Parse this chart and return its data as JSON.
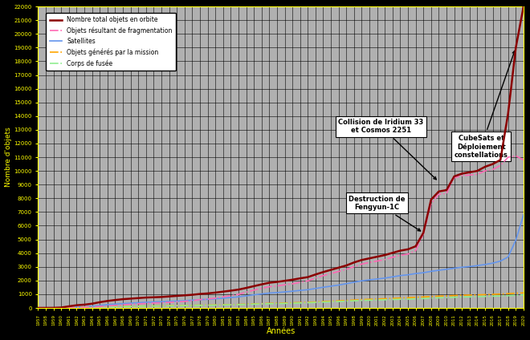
{
  "years": [
    1957,
    1958,
    1959,
    1960,
    1961,
    1962,
    1963,
    1964,
    1965,
    1966,
    1967,
    1968,
    1969,
    1970,
    1971,
    1972,
    1973,
    1974,
    1975,
    1976,
    1977,
    1978,
    1979,
    1980,
    1981,
    1982,
    1983,
    1984,
    1985,
    1986,
    1987,
    1988,
    1989,
    1990,
    1991,
    1992,
    1993,
    1994,
    1995,
    1996,
    1997,
    1998,
    1999,
    2000,
    2001,
    2002,
    2003,
    2004,
    2005,
    2006,
    2007,
    2008,
    2009,
    2010,
    2011,
    2012,
    2013,
    2014,
    2015,
    2016,
    2017,
    2018,
    2019,
    2020
  ],
  "total": [
    2,
    4,
    8,
    30,
    120,
    200,
    240,
    310,
    420,
    510,
    580,
    640,
    680,
    720,
    760,
    780,
    800,
    840,
    880,
    920,
    960,
    1020,
    1060,
    1120,
    1190,
    1260,
    1340,
    1460,
    1590,
    1720,
    1840,
    1900,
    1980,
    2060,
    2160,
    2250,
    2440,
    2620,
    2780,
    2940,
    3100,
    3320,
    3500,
    3620,
    3740,
    3860,
    4020,
    4180,
    4280,
    4500,
    5480,
    7900,
    8500,
    8600,
    9600,
    9800,
    9900,
    10000,
    10300,
    10500,
    10800,
    14200,
    19000,
    22000
  ],
  "fragmentation": [
    0,
    0,
    0,
    0,
    0,
    30,
    40,
    60,
    100,
    140,
    185,
    230,
    270,
    300,
    330,
    360,
    380,
    410,
    445,
    480,
    530,
    610,
    650,
    720,
    810,
    900,
    990,
    1150,
    1300,
    1430,
    1550,
    1600,
    1690,
    1760,
    1870,
    1970,
    2180,
    2360,
    2510,
    2660,
    2820,
    3010,
    3200,
    3320,
    3420,
    3530,
    3700,
    3840,
    3930,
    4180,
    5400,
    7600,
    8300,
    8350,
    9500,
    9650,
    9700,
    9750,
    10000,
    10100,
    10400,
    11000,
    11100,
    10800
  ],
  "satellites": [
    1,
    2,
    4,
    12,
    35,
    60,
    80,
    120,
    180,
    240,
    280,
    315,
    350,
    380,
    415,
    435,
    455,
    480,
    500,
    530,
    565,
    600,
    630,
    668,
    715,
    760,
    810,
    880,
    960,
    1020,
    1085,
    1120,
    1170,
    1220,
    1280,
    1330,
    1420,
    1510,
    1590,
    1670,
    1770,
    1880,
    1980,
    2050,
    2110,
    2180,
    2270,
    2360,
    2420,
    2510,
    2570,
    2670,
    2750,
    2820,
    2900,
    2970,
    3020,
    3090,
    3170,
    3270,
    3420,
    3720,
    4950,
    6800
  ],
  "mission": [
    0,
    0,
    0,
    5,
    18,
    35,
    50,
    65,
    82,
    100,
    108,
    118,
    126,
    134,
    142,
    150,
    156,
    165,
    174,
    184,
    192,
    204,
    210,
    220,
    234,
    246,
    258,
    278,
    298,
    316,
    334,
    346,
    358,
    374,
    394,
    412,
    438,
    466,
    492,
    518,
    548,
    580,
    610,
    632,
    652,
    674,
    698,
    724,
    744,
    776,
    800,
    834,
    860,
    882,
    904,
    926,
    938,
    955,
    972,
    992,
    1014,
    1042,
    1074,
    1100
  ],
  "rocket_body": [
    0,
    0,
    0,
    5,
    14,
    25,
    36,
    50,
    68,
    84,
    94,
    104,
    112,
    120,
    128,
    136,
    142,
    150,
    158,
    168,
    176,
    186,
    194,
    204,
    216,
    228,
    240,
    258,
    276,
    292,
    308,
    318,
    328,
    342,
    360,
    376,
    402,
    428,
    448,
    470,
    496,
    524,
    548,
    565,
    580,
    596,
    614,
    632,
    644,
    664,
    684,
    716,
    740,
    758,
    780,
    798,
    810,
    824,
    838,
    856,
    874,
    896,
    920,
    944
  ],
  "colors": {
    "total": "#8B0000",
    "fragmentation": "#FF69B4",
    "satellites": "#6495ED",
    "mission": "#FFA500",
    "rocket_body": "#90EE90"
  },
  "ylabel": "Nombre d'objets",
  "xlabel": "Années",
  "ylim": [
    0,
    22000
  ],
  "yticks": [
    0,
    1000,
    2000,
    3000,
    4000,
    5000,
    6000,
    7000,
    8000,
    9000,
    10000,
    11000,
    12000,
    13000,
    14000,
    15000,
    16000,
    17000,
    18000,
    19000,
    20000,
    21000,
    22000
  ],
  "background_color": "#000000",
  "plot_bg_color": "#B0B0B0",
  "grid_color": "#000000",
  "text_color": "#FFFF00"
}
